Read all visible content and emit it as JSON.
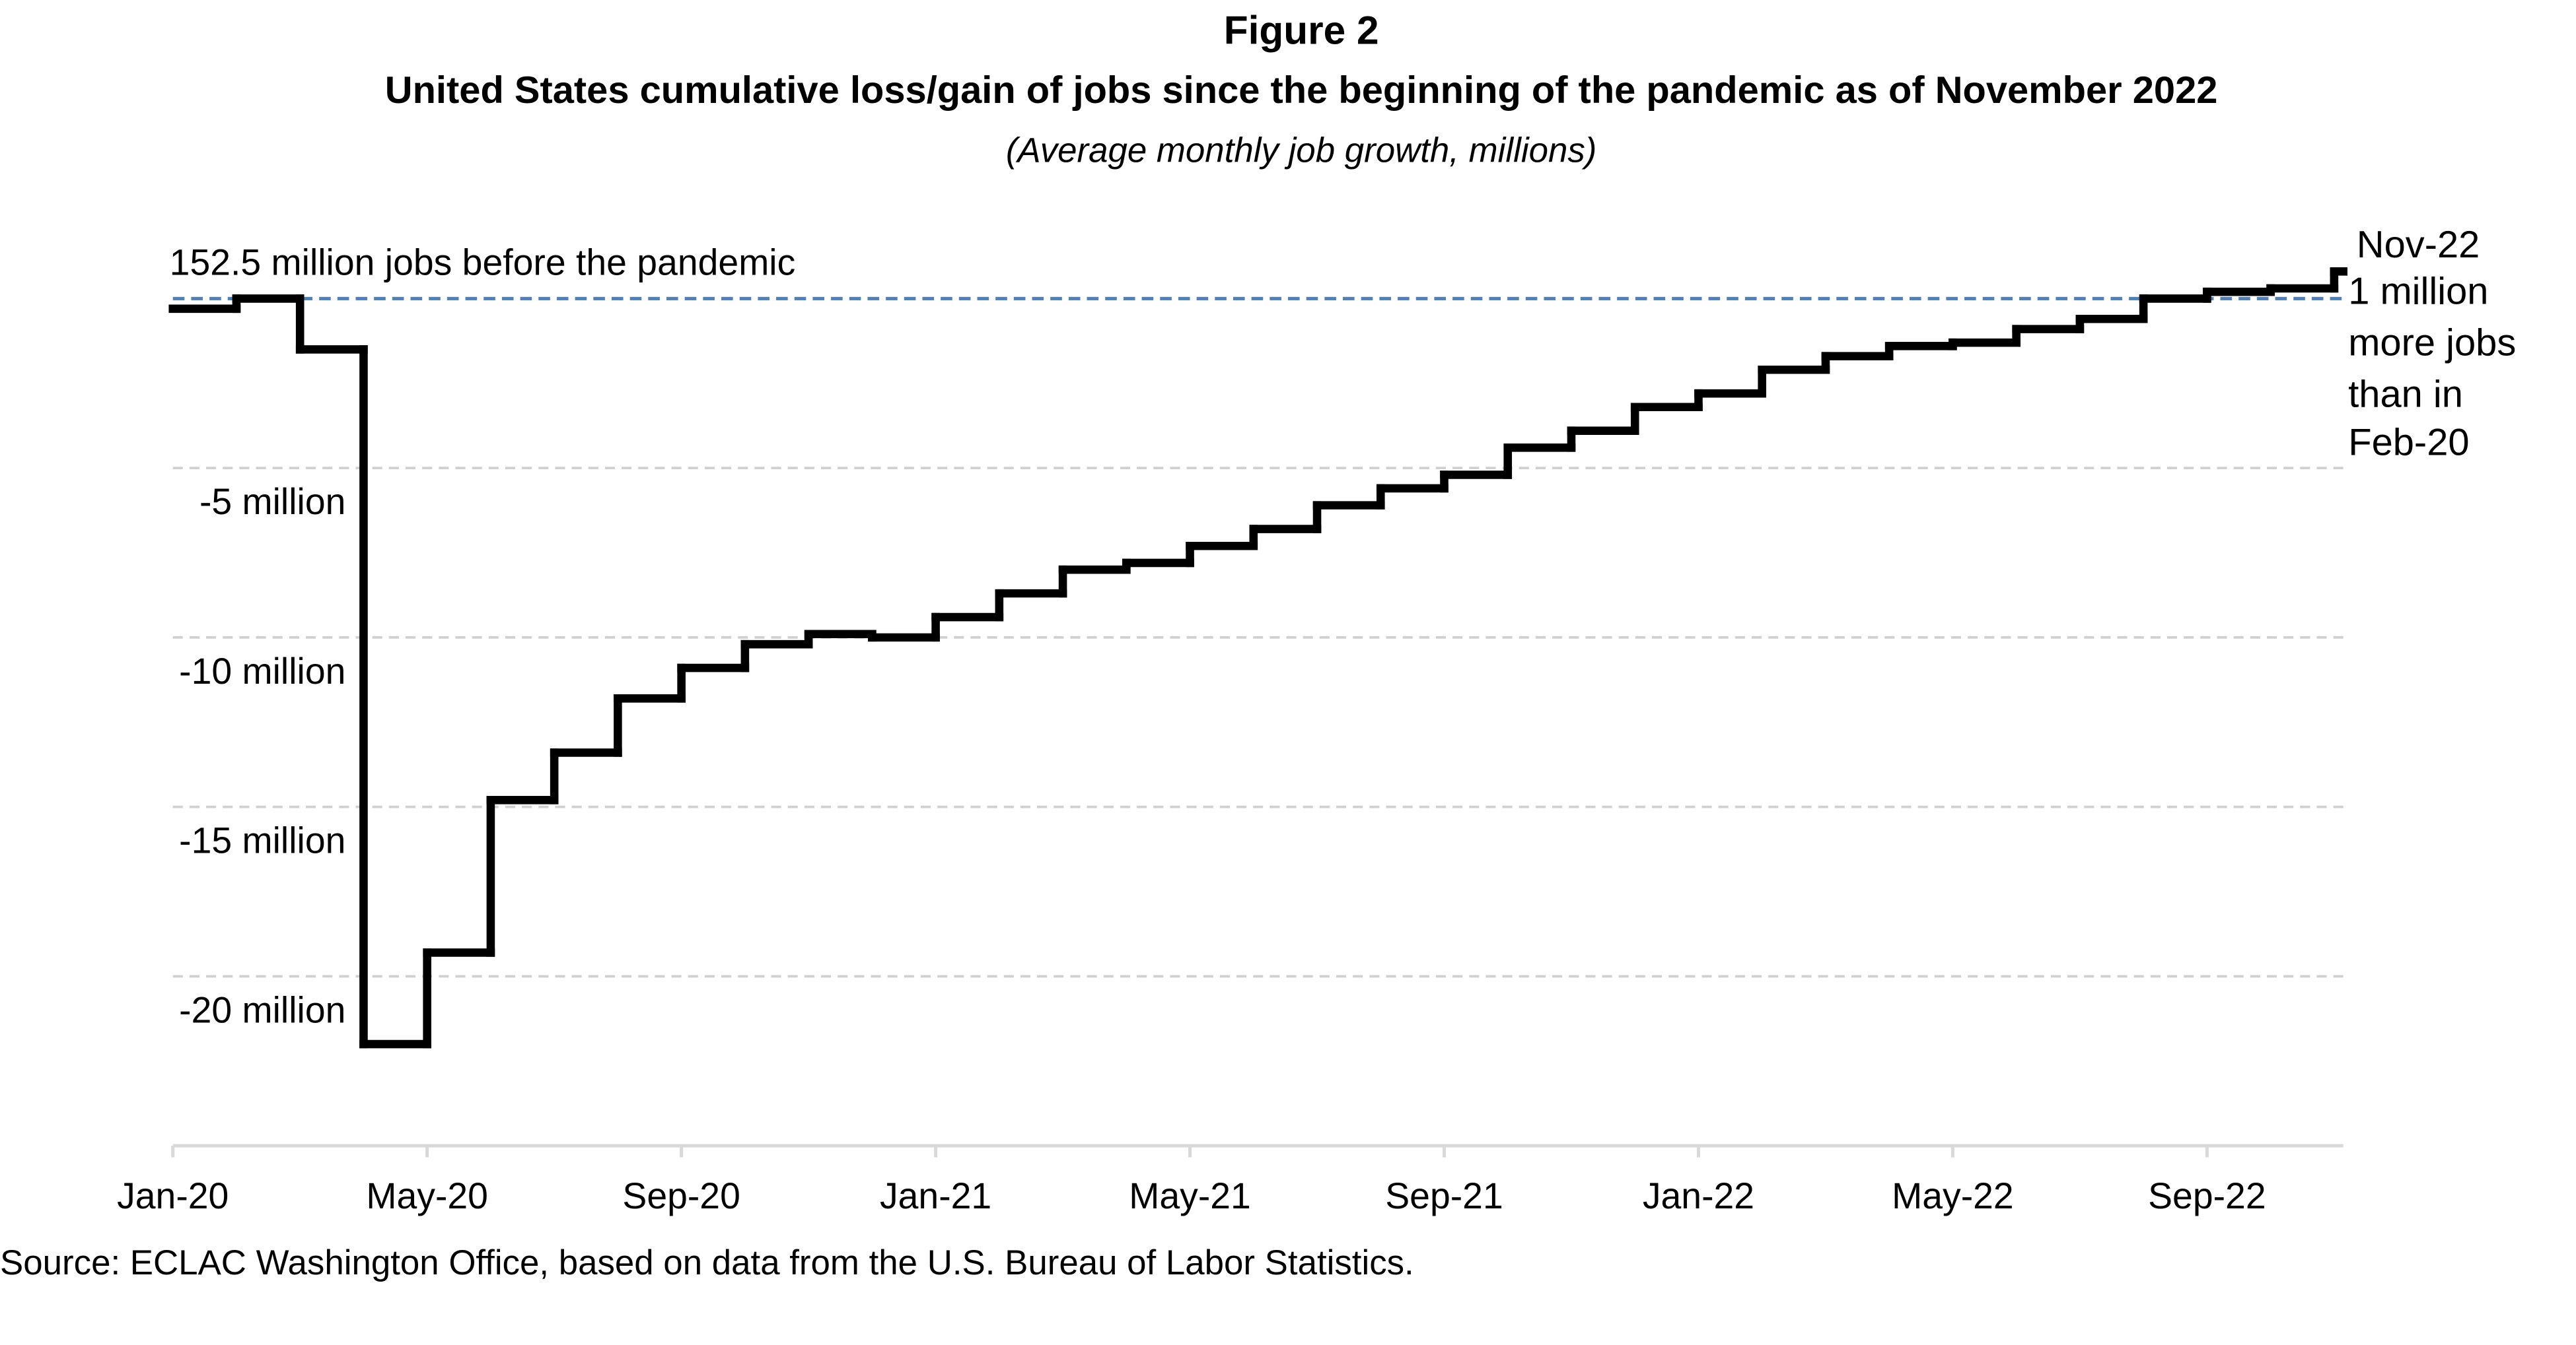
{
  "chart_data": {
    "type": "line",
    "figure_label": "Figure 2",
    "title": "United States cumulative loss/gain of jobs since the beginning of the pandemic as of November 2022",
    "subtitle": "(Average monthly job growth, millions)",
    "categories": [
      "Jan-20",
      null,
      null,
      null,
      "May-20",
      null,
      null,
      null,
      "Sep-20",
      null,
      null,
      null,
      "Jan-21",
      null,
      null,
      null,
      "May-21",
      null,
      null,
      null,
      "Sep-21",
      null,
      null,
      null,
      "Jan-22",
      null,
      null,
      null,
      "May-22",
      null,
      null,
      null,
      "Sep-22",
      null,
      null
    ],
    "series": [
      {
        "name": "Cumulative loss/gain of jobs",
        "color": "#000000",
        "values": [
          -0.3,
          0,
          -1.5,
          -22.0,
          -19.3,
          -14.8,
          -13.4,
          -11.8,
          -10.9,
          -10.2,
          -9.9,
          -10.0,
          -9.4,
          -8.7,
          -8.0,
          -7.8,
          -7.3,
          -6.8,
          -6.1,
          -5.6,
          -5.2,
          -4.4,
          -3.9,
          -3.2,
          -2.8,
          -2.1,
          -1.7,
          -1.4,
          -1.3,
          -0.9,
          -0.6,
          0.0,
          0.2,
          0.3,
          0.8
        ]
      }
    ],
    "ylim": [
      -25,
      2
    ],
    "yticks": [
      {
        "value": -5,
        "label": "-5 million"
      },
      {
        "value": -10,
        "label": "-10 million"
      },
      {
        "value": -15,
        "label": "-15 million"
      },
      {
        "value": -20,
        "label": "-20 million"
      }
    ],
    "grid": true,
    "reference_line": {
      "value": 0,
      "label": "152.5 million jobs before the pandemic",
      "color": "#4f81bd"
    },
    "annotation": {
      "lines": [
        "Nov-22",
        "1 million",
        "more jobs",
        "than in",
        "Feb-20"
      ],
      "color": "#d99594"
    },
    "source": "Source: ECLAC Washington Office, based on data from the U.S. Bureau of Labor Statistics."
  }
}
